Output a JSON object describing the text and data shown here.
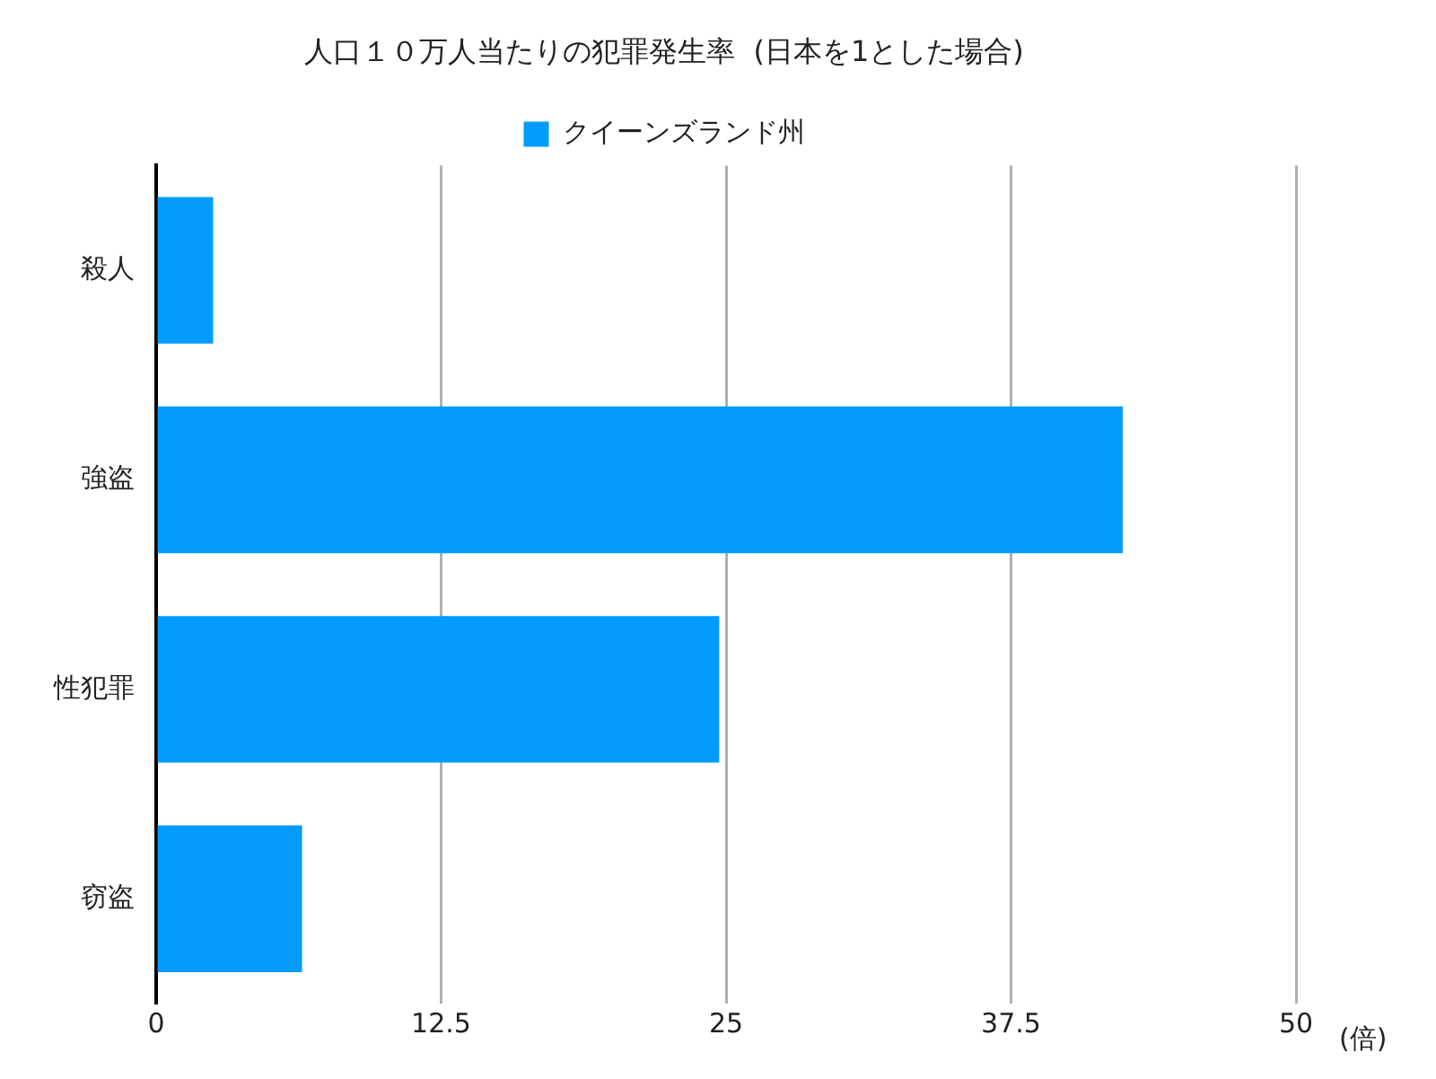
{
  "chart_data": {
    "type": "bar",
    "orientation": "horizontal",
    "title": "人口１０万人当たりの犯罪発生率  (日本を1とした場合)",
    "xlabel": "(倍)",
    "categories": [
      "殺人",
      "強盗",
      "性犯罪",
      "窃盗"
    ],
    "series": [
      {
        "name": "クイーンズランド州",
        "color": "#039bfc",
        "values": [
          2.5,
          42.4,
          24.7,
          6.4
        ]
      }
    ],
    "xlim": [
      0,
      50
    ],
    "xticks": [
      0,
      12.5,
      25,
      37.5,
      50
    ],
    "grid": "x",
    "legend": "top"
  }
}
